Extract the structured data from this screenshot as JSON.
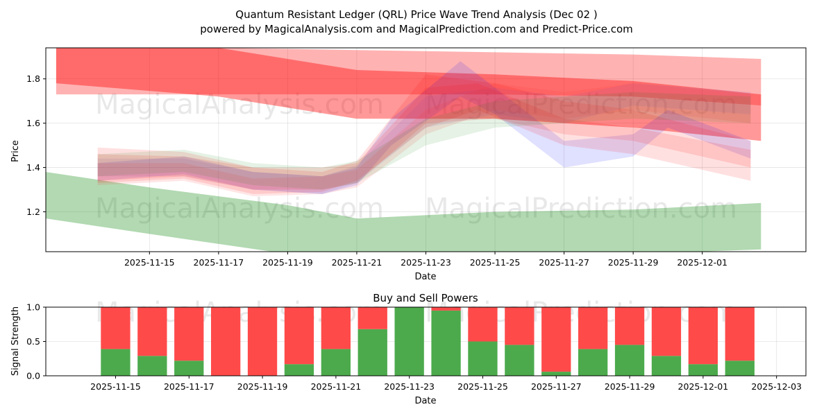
{
  "chart_data": [
    {
      "type": "area",
      "title_line1": "Quantum Resistant Ledger (QRL) Price Wave Trend Analysis (Dec 02 )",
      "title_line2": "powered by MagicalAnalysis.com and MagicalPrediction.com and Predict-Price.com",
      "xlabel": "Date",
      "ylabel": "Price",
      "grid": true,
      "x_range": [
        "2025-11-12",
        "2025-12-04"
      ],
      "ylim": [
        1.02,
        1.94
      ],
      "x_ticks": [
        "2025-11-15",
        "2025-11-17",
        "2025-11-19",
        "2025-11-21",
        "2025-11-23",
        "2025-11-25",
        "2025-11-27",
        "2025-11-29",
        "2025-12-01"
      ],
      "y_ticks": [
        1.2,
        1.4,
        1.6,
        1.8
      ],
      "watermarks": [
        "MagicalAnalysis.com",
        "MagicalPrediction.com",
        "MagicalAnalysis.com",
        "MagicalPrediction.com"
      ],
      "bands": [
        {
          "name": "red-wide-top",
          "color": "#ff0000",
          "opacity": 0.3,
          "x": [
            "2025-11-12.3",
            "2025-11-17",
            "2025-11-21",
            "2025-11-25",
            "2025-11-29",
            "2025-12-02.7"
          ],
          "lower": [
            1.73,
            1.73,
            1.73,
            1.73,
            1.72,
            1.68
          ],
          "upper": [
            1.94,
            1.94,
            1.93,
            1.92,
            1.91,
            1.89
          ]
        },
        {
          "name": "red-dark-top",
          "color": "#ff0000",
          "opacity": 0.4,
          "x": [
            "2025-11-12.3",
            "2025-11-17",
            "2025-11-21",
            "2025-11-25",
            "2025-11-29",
            "2025-12-02.7"
          ],
          "lower": [
            1.78,
            1.72,
            1.62,
            1.62,
            1.58,
            1.52
          ],
          "upper": [
            1.94,
            1.94,
            1.84,
            1.82,
            1.79,
            1.73
          ]
        },
        {
          "name": "green-low",
          "color": "#008000",
          "opacity": 0.3,
          "x": [
            "2025-11-12",
            "2025-11-15",
            "2025-11-19",
            "2025-11-21",
            "2025-11-25",
            "2025-11-29",
            "2025-12-02.7"
          ],
          "lower": [
            1.17,
            1.1,
            1.01,
            0.98,
            1.0,
            1.01,
            1.03
          ],
          "upper": [
            1.38,
            1.31,
            1.23,
            1.17,
            1.2,
            1.21,
            1.24
          ]
        },
        {
          "name": "blue-wave-1",
          "color": "#0000ff",
          "opacity": 0.12,
          "x": [
            "2025-11-13.5",
            "2025-11-16",
            "2025-11-18",
            "2025-11-20",
            "2025-11-21",
            "2025-11-22",
            "2025-11-24",
            "2025-11-25",
            "2025-11-27",
            "2025-11-29",
            "2025-11-30",
            "2025-12-02.4"
          ],
          "lower": [
            1.34,
            1.37,
            1.3,
            1.28,
            1.32,
            1.5,
            1.72,
            1.64,
            1.4,
            1.45,
            1.58,
            1.44
          ],
          "upper": [
            1.42,
            1.45,
            1.38,
            1.36,
            1.4,
            1.62,
            1.88,
            1.76,
            1.52,
            1.55,
            1.66,
            1.52
          ]
        },
        {
          "name": "blue-wave-2",
          "color": "#6a5acd",
          "opacity": 0.12,
          "x": [
            "2025-11-13.5",
            "2025-11-16",
            "2025-11-18",
            "2025-11-20",
            "2025-11-21",
            "2025-11-23",
            "2025-11-25",
            "2025-11-27",
            "2025-11-29",
            "2025-12-02.4"
          ],
          "lower": [
            1.36,
            1.36,
            1.3,
            1.28,
            1.33,
            1.58,
            1.64,
            1.6,
            1.68,
            1.64
          ],
          "upper": [
            1.44,
            1.44,
            1.38,
            1.36,
            1.41,
            1.72,
            1.76,
            1.72,
            1.78,
            1.74
          ]
        },
        {
          "name": "red-wave-1",
          "color": "#ff0000",
          "opacity": 0.12,
          "x": [
            "2025-11-13.5",
            "2025-11-16",
            "2025-11-18",
            "2025-11-20",
            "2025-11-21",
            "2025-11-23",
            "2025-11-24.5",
            "2025-11-27",
            "2025-11-29",
            "2025-12-02.4"
          ],
          "lower": [
            1.33,
            1.35,
            1.28,
            1.29,
            1.34,
            1.58,
            1.66,
            1.5,
            1.46,
            1.34
          ],
          "upper": [
            1.49,
            1.47,
            1.4,
            1.4,
            1.42,
            1.76,
            1.78,
            1.62,
            1.58,
            1.48
          ]
        },
        {
          "name": "red-wave-2",
          "color": "#ff0000",
          "opacity": 0.12,
          "x": [
            "2025-11-13.5",
            "2025-11-16",
            "2025-11-18",
            "2025-11-20",
            "2025-11-21",
            "2025-11-23",
            "2025-11-25",
            "2025-11-27",
            "2025-11-29",
            "2025-12-02.4"
          ],
          "lower": [
            1.34,
            1.36,
            1.3,
            1.3,
            1.33,
            1.6,
            1.62,
            1.55,
            1.52,
            1.4
          ],
          "upper": [
            1.46,
            1.45,
            1.4,
            1.38,
            1.43,
            1.82,
            1.78,
            1.7,
            1.66,
            1.52
          ]
        },
        {
          "name": "red-wave-3",
          "color": "#ff3030",
          "opacity": 0.12,
          "x": [
            "2025-11-13.5",
            "2025-11-16",
            "2025-11-18",
            "2025-11-20",
            "2025-11-21",
            "2025-11-23",
            "2025-11-25",
            "2025-11-27",
            "2025-11-29",
            "2025-12-02.4"
          ],
          "lower": [
            1.32,
            1.34,
            1.27,
            1.28,
            1.31,
            1.55,
            1.66,
            1.62,
            1.66,
            1.6
          ],
          "upper": [
            1.42,
            1.42,
            1.35,
            1.36,
            1.39,
            1.66,
            1.78,
            1.74,
            1.78,
            1.73
          ]
        },
        {
          "name": "green-wave",
          "color": "#008000",
          "opacity": 0.1,
          "x": [
            "2025-11-13.5",
            "2025-11-16",
            "2025-11-18",
            "2025-11-20",
            "2025-11-21",
            "2025-11-23",
            "2025-11-25",
            "2025-11-27",
            "2025-11-29",
            "2025-12-02.4"
          ],
          "lower": [
            1.36,
            1.38,
            1.32,
            1.3,
            1.33,
            1.5,
            1.58,
            1.6,
            1.62,
            1.6
          ],
          "upper": [
            1.46,
            1.48,
            1.42,
            1.4,
            1.43,
            1.62,
            1.7,
            1.72,
            1.74,
            1.72
          ]
        }
      ]
    },
    {
      "type": "bar",
      "title": "Buy and Sell Powers",
      "xlabel": "Date",
      "ylabel": "Signal Strength",
      "ylim": [
        0,
        1
      ],
      "y_ticks": [
        "0.0",
        "0.5",
        "1.0"
      ],
      "x_ticks": [
        "2025-11-15",
        "2025-11-17",
        "2025-11-19",
        "2025-11-21",
        "2025-11-23",
        "2025-11-25",
        "2025-11-27",
        "2025-11-29",
        "2025-12-01",
        "2025-12-03"
      ],
      "categories": [
        "2025-11-15",
        "2025-11-16",
        "2025-11-17",
        "2025-11-18",
        "2025-11-19",
        "2025-11-20",
        "2025-11-21",
        "2025-11-22",
        "2025-11-23",
        "2025-11-24",
        "2025-11-25",
        "2025-11-26",
        "2025-11-27",
        "2025-11-28",
        "2025-11-29",
        "2025-11-30",
        "2025-12-01",
        "2025-12-02"
      ],
      "series": [
        {
          "name": "Buy",
          "color": "#4caa4c",
          "values": [
            0.39,
            0.29,
            0.22,
            0.0,
            0.0,
            0.17,
            0.39,
            0.68,
            1.0,
            0.95,
            0.5,
            0.45,
            0.06,
            0.39,
            0.45,
            0.29,
            0.17,
            0.22
          ]
        },
        {
          "name": "Sell",
          "color": "#ff4a4a",
          "values": [
            0.61,
            0.71,
            0.78,
            1.0,
            1.0,
            0.83,
            0.61,
            0.32,
            0.0,
            0.05,
            0.5,
            0.55,
            0.94,
            0.61,
            0.55,
            0.71,
            0.83,
            0.78
          ]
        }
      ],
      "watermarks": [
        "MagicalAnalysis.com",
        "MagicalPrediction.com"
      ]
    }
  ]
}
